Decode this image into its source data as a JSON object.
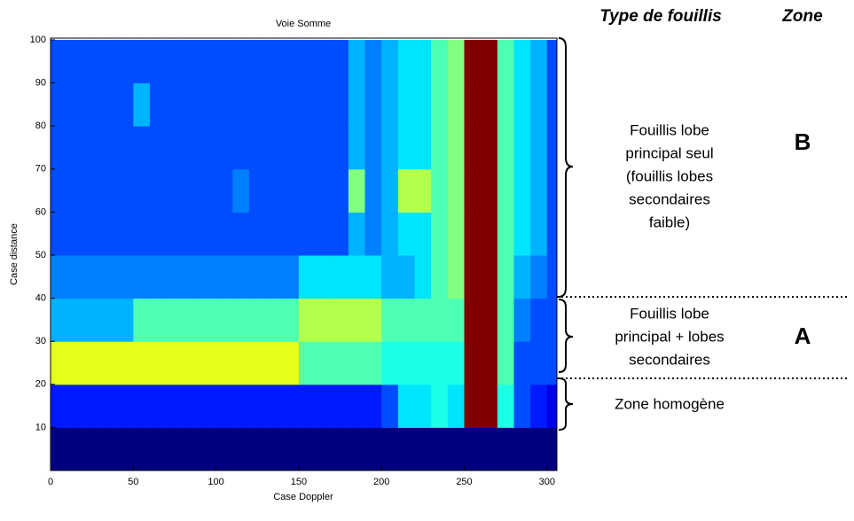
{
  "chart_data": {
    "type": "heatmap",
    "title": "Voie Somme",
    "x_label": "Case Doppler",
    "y_label": "Case distance",
    "colormap": "jet",
    "xbins": [
      0,
      10,
      20,
      30,
      40,
      50,
      60,
      70,
      80,
      90,
      100,
      110,
      120,
      130,
      140,
      150,
      160,
      170,
      180,
      190,
      200,
      210,
      220,
      230,
      240,
      250,
      260,
      270,
      280,
      290,
      300,
      310
    ],
    "ybins": [
      0,
      10,
      20,
      30,
      40,
      50,
      60,
      70,
      80,
      90,
      100
    ],
    "z": [
      [
        0,
        0,
        0,
        0,
        0,
        0,
        0,
        0,
        0,
        0,
        0,
        0,
        0,
        0,
        0,
        0,
        0,
        0,
        0,
        0,
        0,
        0,
        0,
        0,
        0,
        0,
        0,
        0,
        0,
        0,
        0
      ],
      [
        0.15,
        0.15,
        0.15,
        0.15,
        0.15,
        0.15,
        0.15,
        0.15,
        0.15,
        0.15,
        0.15,
        0.15,
        0.15,
        0.15,
        0.15,
        0.15,
        0.15,
        0.15,
        0.15,
        0.15,
        0.2,
        0.35,
        0.35,
        0.4,
        0.35,
        1,
        1,
        0.4,
        0.2,
        0.15,
        0.1
      ],
      [
        0.6,
        0.6,
        0.6,
        0.6,
        0.6,
        0.6,
        0.6,
        0.6,
        0.6,
        0.6,
        0.6,
        0.6,
        0.6,
        0.6,
        0.6,
        0.45,
        0.45,
        0.45,
        0.45,
        0.45,
        0.4,
        0.4,
        0.4,
        0.4,
        0.4,
        1,
        1,
        0.45,
        0.2,
        0.2,
        0.2
      ],
      [
        0.3,
        0.3,
        0.3,
        0.3,
        0.3,
        0.45,
        0.45,
        0.45,
        0.45,
        0.45,
        0.45,
        0.45,
        0.45,
        0.45,
        0.45,
        0.55,
        0.55,
        0.55,
        0.55,
        0.55,
        0.45,
        0.45,
        0.45,
        0.45,
        0.45,
        1,
        1,
        0.45,
        0.25,
        0.2,
        0.2
      ],
      [
        0.25,
        0.25,
        0.25,
        0.25,
        0.25,
        0.25,
        0.25,
        0.25,
        0.25,
        0.25,
        0.25,
        0.25,
        0.25,
        0.25,
        0.25,
        0.35,
        0.35,
        0.35,
        0.35,
        0.35,
        0.3,
        0.3,
        0.35,
        0.45,
        0.5,
        1,
        1,
        0.45,
        0.3,
        0.25,
        0.2
      ],
      [
        0.2,
        0.2,
        0.2,
        0.2,
        0.2,
        0.2,
        0.2,
        0.2,
        0.2,
        0.2,
        0.2,
        0.2,
        0.2,
        0.2,
        0.2,
        0.2,
        0.2,
        0.2,
        0.3,
        0.25,
        0.3,
        0.35,
        0.35,
        0.45,
        0.5,
        1,
        1,
        0.45,
        0.35,
        0.3,
        0.2
      ],
      [
        0.2,
        0.2,
        0.2,
        0.2,
        0.2,
        0.2,
        0.2,
        0.2,
        0.2,
        0.2,
        0.2,
        0.25,
        0.2,
        0.2,
        0.2,
        0.2,
        0.2,
        0.2,
        0.5,
        0.25,
        0.3,
        0.55,
        0.55,
        0.45,
        0.5,
        1,
        1,
        0.45,
        0.35,
        0.3,
        0.2
      ],
      [
        0.2,
        0.2,
        0.2,
        0.2,
        0.2,
        0.2,
        0.2,
        0.2,
        0.2,
        0.2,
        0.2,
        0.2,
        0.2,
        0.2,
        0.2,
        0.2,
        0.2,
        0.2,
        0.3,
        0.25,
        0.3,
        0.35,
        0.35,
        0.45,
        0.5,
        1,
        1,
        0.45,
        0.35,
        0.3,
        0.2
      ],
      [
        0.2,
        0.2,
        0.2,
        0.2,
        0.2,
        0.3,
        0.2,
        0.2,
        0.2,
        0.2,
        0.2,
        0.2,
        0.2,
        0.2,
        0.2,
        0.2,
        0.2,
        0.2,
        0.3,
        0.25,
        0.3,
        0.35,
        0.35,
        0.45,
        0.5,
        1,
        1,
        0.45,
        0.35,
        0.3,
        0.2
      ],
      [
        0.2,
        0.2,
        0.2,
        0.2,
        0.2,
        0.2,
        0.2,
        0.2,
        0.2,
        0.2,
        0.2,
        0.2,
        0.2,
        0.2,
        0.2,
        0.2,
        0.2,
        0.2,
        0.3,
        0.25,
        0.3,
        0.35,
        0.35,
        0.45,
        0.5,
        1,
        1,
        0.45,
        0.35,
        0.3,
        0.2
      ]
    ],
    "xlim": [
      0,
      306
    ],
    "ylim": [
      0,
      100.4
    ],
    "xticks": [
      0,
      50,
      100,
      150,
      200,
      250,
      300
    ],
    "yticks": [
      10,
      20,
      30,
      40,
      50,
      60,
      70,
      80,
      90,
      100
    ],
    "annotations": {
      "headers": [
        "Type de fouillis",
        "Zone"
      ],
      "zones": [
        {
          "lines": [
            "Fouillis lobe",
            "principal seul",
            "(fouillis lobes",
            "secondaires",
            "faible)"
          ],
          "zone": "B"
        },
        {
          "lines": [
            "Fouillis lobe",
            "principal + lobes",
            "secondaires"
          ],
          "zone": "A"
        },
        {
          "lines": [
            "Zone homogène"
          ]
        }
      ]
    }
  }
}
